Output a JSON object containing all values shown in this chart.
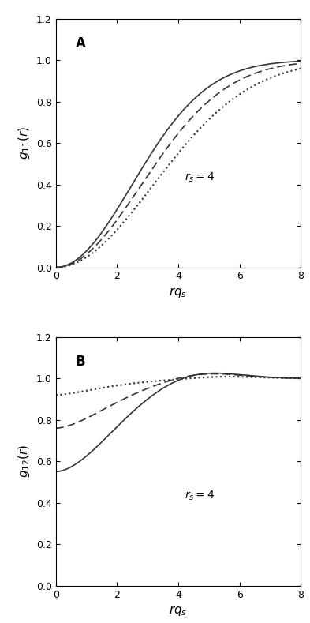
{
  "title_A": "A",
  "title_B": "B",
  "ylabel_A": "$g_{11}(r)$",
  "ylabel_B": "$g_{12}(r)$",
  "xlabel": "$rq_s$",
  "annotation": "$r_s=4$",
  "xlim": [
    0,
    8
  ],
  "ylim": [
    0,
    1.2
  ],
  "xticks": [
    0,
    2,
    4,
    6,
    8
  ],
  "yticks": [
    0.0,
    0.2,
    0.4,
    0.6,
    0.8,
    1.0,
    1.2
  ],
  "line_color": "#333333",
  "background": "#ffffff"
}
